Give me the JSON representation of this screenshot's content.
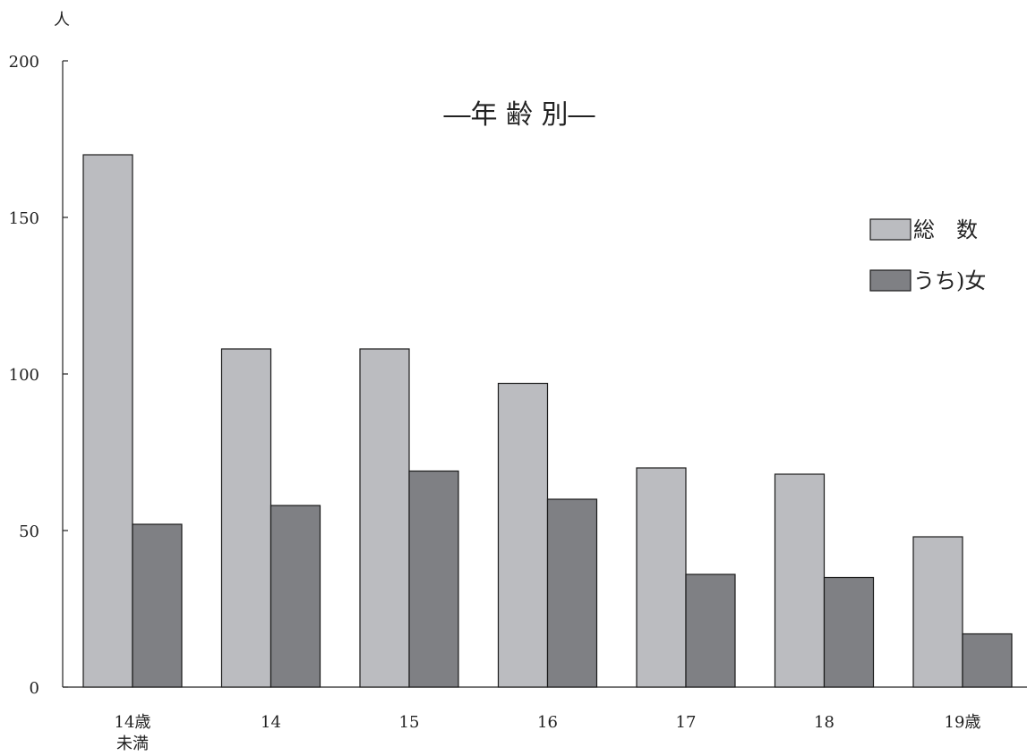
{
  "chart_data": {
    "type": "bar",
    "title": "―年 齢 別―",
    "ylabel": "人",
    "xlabel": "",
    "ylim": [
      0,
      200
    ],
    "yticks": [
      "0",
      "50",
      "100",
      "150",
      "200"
    ],
    "categories": [
      [
        "14歳",
        "未満"
      ],
      [
        "14"
      ],
      [
        "15"
      ],
      [
        "16"
      ],
      [
        "17"
      ],
      [
        "18"
      ],
      [
        "19歳"
      ]
    ],
    "series": [
      {
        "name": "総　数",
        "values": [
          170,
          108,
          108,
          97,
          70,
          68,
          48
        ],
        "color": "#bbbcc0"
      },
      {
        "name": "うち)女",
        "values": [
          52,
          58,
          69,
          60,
          36,
          35,
          17
        ],
        "color": "#7f8084"
      }
    ],
    "legend_position": "top-right",
    "grid": false
  }
}
